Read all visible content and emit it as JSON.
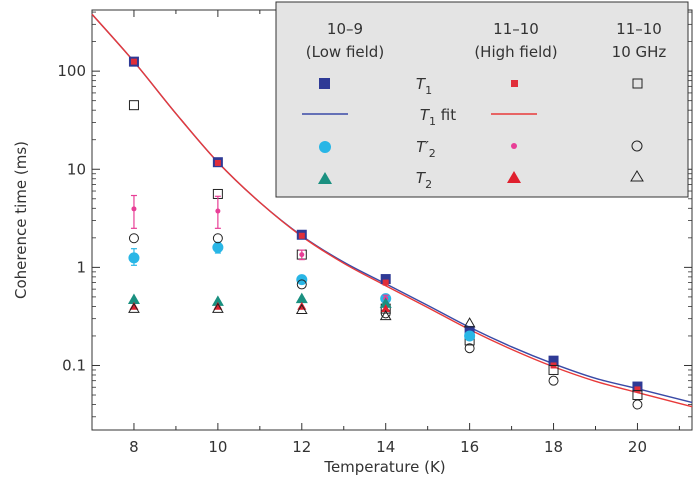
{
  "chart_data": {
    "type": "scatter",
    "title": "",
    "xlabel": "Temperature (K)",
    "ylabel": "Coherence time (ms)",
    "xlim": [
      7,
      21.3
    ],
    "ylim": [
      0.022,
      420
    ],
    "yscale": "log",
    "x_ticks": [
      8,
      10,
      12,
      14,
      16,
      18,
      20
    ],
    "x_tick_labels": [
      "8",
      "10",
      "12",
      "14",
      "16",
      "18",
      "20"
    ],
    "y_ticks": [
      0.1,
      1,
      10,
      100
    ],
    "y_tick_labels": [
      "0.1",
      "1",
      "10",
      "100"
    ],
    "legend": {
      "position": "top-right",
      "columns": [
        {
          "id": "lf",
          "line1": "10–9",
          "line2": "(Low field)"
        },
        {
          "id": "hf",
          "line1": "11–10",
          "line2": "(High field)"
        },
        {
          "id": "ghz",
          "line1": "11–10",
          "line2": "10 GHz"
        }
      ],
      "rows": [
        {
          "id": "t1",
          "label_main": "T",
          "label_sub": "1",
          "label_suffix": ""
        },
        {
          "id": "t1fit",
          "label_main": "T",
          "label_sub": "1",
          "label_suffix": " fit"
        },
        {
          "id": "t2p",
          "label_main": "T′",
          "label_sub": "2",
          "label_suffix": ""
        },
        {
          "id": "t2",
          "label_main": "T",
          "label_sub": "2",
          "label_suffix": ""
        }
      ]
    },
    "colors": {
      "lf_square": "#2e3a96",
      "lf_circle": "#29b6e6",
      "lf_triangle": "#1a9080",
      "lf_fit": "#3a4aa6",
      "hf_square": "#e02e3a",
      "hf_circle": "#e83e96",
      "hf_triangle": "#e0202e",
      "hf_fit": "#e83a3a",
      "ghz_marker": "#222222"
    },
    "series": [
      {
        "name": "T1 (10–9, low field)",
        "marker": "square",
        "color_key": "lf_square",
        "size": 10,
        "x": [
          8,
          10,
          12,
          14,
          16,
          18,
          20
        ],
        "y": [
          125,
          11.8,
          2.15,
          0.76,
          0.225,
          0.112,
          0.061
        ]
      },
      {
        "name": "T1 (11–10, high field)",
        "marker": "square",
        "color_key": "hf_square",
        "size": 6,
        "x": [
          8,
          10,
          12,
          14,
          16,
          18,
          20
        ],
        "y": [
          125,
          11.6,
          2.1,
          0.7,
          0.2,
          0.1,
          0.057
        ]
      },
      {
        "name": "T1 (11–10, 10 GHz)",
        "marker": "square-open",
        "color_key": "ghz_marker",
        "size": 9,
        "x": [
          8,
          10,
          12,
          14,
          16,
          18,
          20
        ],
        "y": [
          45,
          5.6,
          1.35,
          0.38,
          0.18,
          0.09,
          0.05
        ]
      },
      {
        "name": "T2' (10–9, low field)",
        "marker": "circle",
        "color_key": "lf_circle",
        "size": 11,
        "x": [
          8,
          10,
          12,
          14,
          16
        ],
        "y": [
          1.25,
          1.6,
          0.75,
          0.48,
          0.2
        ],
        "err_low": [
          1.05,
          1.4,
          0.7,
          0.44,
          0.19
        ],
        "err_high": [
          1.55,
          1.8,
          0.8,
          0.52,
          0.21
        ]
      },
      {
        "name": "T2' (11–10, high field)",
        "marker": "circle",
        "color_key": "hf_circle",
        "size": 5,
        "x": [
          8,
          10,
          12,
          14
        ],
        "y": [
          3.95,
          3.75,
          1.35,
          0.48
        ],
        "err_low": [
          2.5,
          2.5,
          1.2,
          0.44
        ],
        "err_high": [
          5.4,
          5.3,
          1.5,
          0.52
        ]
      },
      {
        "name": "T2' (11–10, 10 GHz)",
        "marker": "circle-open",
        "color_key": "ghz_marker",
        "size": 9,
        "x": [
          8,
          10,
          12,
          14,
          16,
          18,
          20
        ],
        "y": [
          1.98,
          1.98,
          0.67,
          0.34,
          0.15,
          0.07,
          0.04
        ]
      },
      {
        "name": "T2 (10–9, low field)",
        "marker": "triangle",
        "color_key": "lf_triangle",
        "size": 12,
        "x": [
          8,
          10,
          12,
          14
        ],
        "y": [
          0.47,
          0.45,
          0.48,
          0.43
        ]
      },
      {
        "name": "T2 (11–10, high field)",
        "marker": "triangle",
        "color_key": "hf_triangle",
        "size": 9,
        "x": [
          8,
          10,
          12,
          14
        ],
        "y": [
          0.4,
          0.4,
          0.4,
          0.38
        ]
      },
      {
        "name": "T2 (11–10, 10 GHz)",
        "marker": "triangle-open",
        "color_key": "ghz_marker",
        "size": 10,
        "x": [
          8,
          10,
          12,
          14,
          16
        ],
        "y": [
          0.38,
          0.38,
          0.37,
          0.32,
          0.27
        ]
      }
    ],
    "fits": [
      {
        "name": "T1 fit (10–9, low field)",
        "color_key": "lf_fit",
        "x": [
          7,
          8,
          9,
          10,
          11,
          12,
          13,
          14,
          15,
          16,
          17,
          18,
          19,
          20,
          21.3
        ],
        "y": [
          380,
          125,
          37,
          11.8,
          4.6,
          2.1,
          1.13,
          0.68,
          0.41,
          0.245,
          0.155,
          0.104,
          0.074,
          0.058,
          0.042
        ]
      },
      {
        "name": "T1 fit (11–10, high field)",
        "color_key": "hf_fit",
        "x": [
          7,
          8,
          9,
          10,
          11,
          12,
          13,
          14,
          15,
          16,
          17,
          18,
          19,
          20,
          21.3
        ],
        "y": [
          380,
          125,
          37,
          11.8,
          4.6,
          2.07,
          1.1,
          0.65,
          0.39,
          0.232,
          0.146,
          0.097,
          0.069,
          0.053,
          0.038
        ]
      }
    ]
  }
}
